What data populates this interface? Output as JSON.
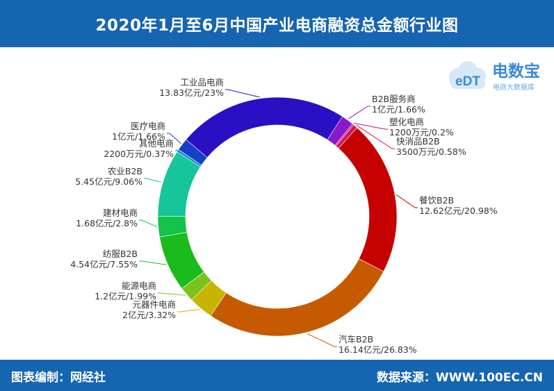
{
  "header": {
    "title": "2020年1月至6月中国产业电商融资总金额行业图"
  },
  "footer": {
    "left": "图表编制：网经社",
    "right": "数据来源：WWW.100EC.CN"
  },
  "logo": {
    "icon_text": "eDT",
    "name": "电数宝",
    "subtitle": "电商大数据库"
  },
  "colors": {
    "header_bg": "#1565b0",
    "footer_bg": "#1565b0"
  },
  "chart_data": {
    "type": "pie",
    "variant": "donut",
    "title": "2020年1月至6月中国产业电商融资总金额行业图",
    "slices": [
      {
        "name": "B2B服务商",
        "label": "1亿元/1.66%",
        "percent": 1.66,
        "color": "#8a18c8"
      },
      {
        "name": "塑化电商",
        "label": "1200万元/0.2%",
        "percent": 0.2,
        "color": "#b0158a"
      },
      {
        "name": "快消品B2B",
        "label": "3500万元/0.58%",
        "percent": 0.58,
        "color": "#d4145a"
      },
      {
        "name": "餐饮B2B",
        "label": "12.62亿元/20.98%",
        "percent": 20.98,
        "color": "#c50000"
      },
      {
        "name": "汽车B2B",
        "label": "16.14亿元/26.83%",
        "percent": 26.83,
        "color": "#c65a00"
      },
      {
        "name": "元器件电商",
        "label": "2亿元/3.32%",
        "percent": 3.32,
        "color": "#c7b400"
      },
      {
        "name": "能源电商",
        "label": "1.2亿元/1.99%",
        "percent": 1.99,
        "color": "#7cc21d"
      },
      {
        "name": "纺服B2B",
        "label": "4.54亿元/7.55%",
        "percent": 7.55,
        "color": "#1cbb1c"
      },
      {
        "name": "建材电商",
        "label": "1.68亿元/2.8%",
        "percent": 2.8,
        "color": "#12c44a"
      },
      {
        "name": "农业B2B",
        "label": "5.45亿元/9.06%",
        "percent": 9.06,
        "color": "#16c59a"
      },
      {
        "name": "其他电商",
        "label": "2200万元/0.37%",
        "percent": 0.37,
        "color": "#1a8fd0"
      },
      {
        "name": "医疗电商",
        "label": "1亿元/1.66%",
        "percent": 1.66,
        "color": "#1240c8"
      },
      {
        "name": "工业品电商",
        "label": "13.83亿元/23%",
        "percent": 23,
        "color": "#2a10c4"
      }
    ]
  }
}
